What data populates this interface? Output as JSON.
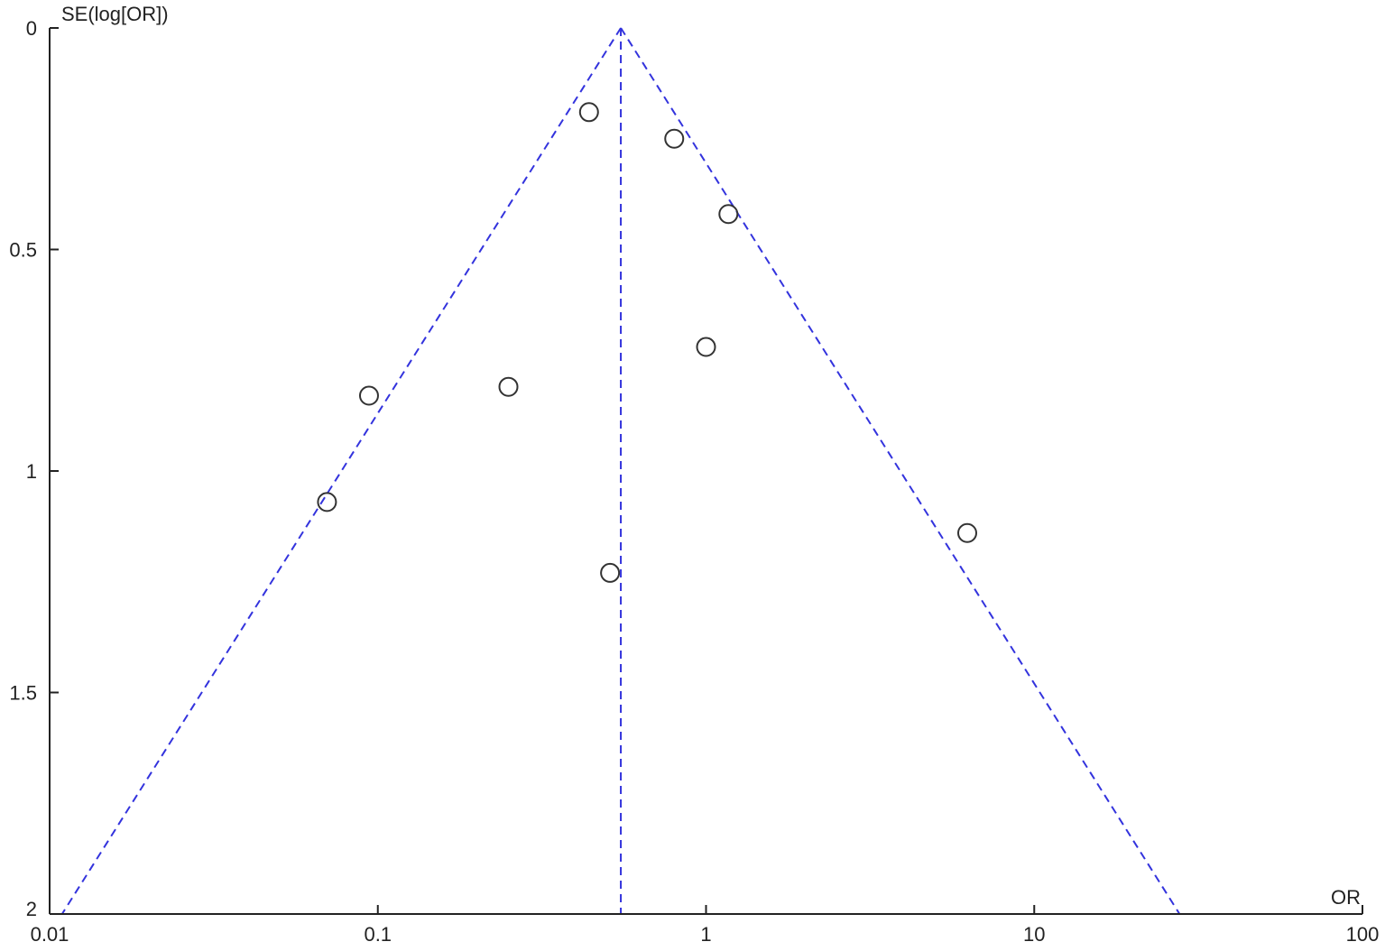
{
  "chart_data": {
    "type": "scatter",
    "subtype": "funnel-plot",
    "title": "",
    "xlabel": "OR",
    "ylabel": "SE(log[OR])",
    "x_scale": "log",
    "xlim": [
      0.01,
      100
    ],
    "ylim": [
      0,
      2
    ],
    "y_inverted": true,
    "x_ticks": [
      "0.01",
      "0.1",
      "1",
      "10",
      "100"
    ],
    "x_tick_values": [
      0.01,
      0.1,
      1,
      10,
      100
    ],
    "y_ticks": [
      "0",
      "0.5",
      "1",
      "1.5",
      "2"
    ],
    "y_tick_values": [
      0,
      0.5,
      1,
      1.5,
      2
    ],
    "grid": false,
    "pooled_or": 0.55,
    "funnel_z": 1.96,
    "line_color": "#3333dd",
    "marker_color": "#333333",
    "points": [
      {
        "or": 0.44,
        "se": 0.19
      },
      {
        "or": 0.8,
        "se": 0.25
      },
      {
        "or": 1.17,
        "se": 0.42
      },
      {
        "or": 1.0,
        "se": 0.72
      },
      {
        "or": 0.25,
        "se": 0.81
      },
      {
        "or": 0.094,
        "se": 0.83
      },
      {
        "or": 0.07,
        "se": 1.07
      },
      {
        "or": 0.51,
        "se": 1.23
      },
      {
        "or": 6.25,
        "se": 1.14
      }
    ]
  }
}
